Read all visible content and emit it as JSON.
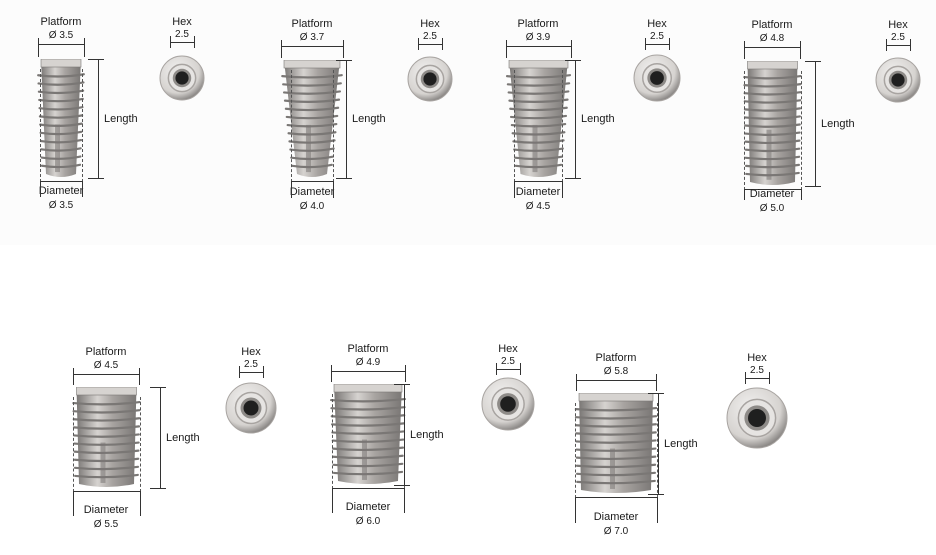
{
  "labels": {
    "platform": "Platform",
    "hex": "Hex",
    "length": "Length",
    "diameter": "Diameter"
  },
  "implants": [
    {
      "platform": "Ø 3.5",
      "hex": "2.5",
      "diameter": "Ø 3.5"
    },
    {
      "platform": "Ø 3.7",
      "hex": "2.5",
      "diameter": "Ø 4.0"
    },
    {
      "platform": "Ø 3.9",
      "hex": "2.5",
      "diameter": "Ø 4.5"
    },
    {
      "platform": "Ø 4.8",
      "hex": "2.5",
      "diameter": "Ø 5.0"
    },
    {
      "platform": "Ø 4.5",
      "hex": "2.5",
      "diameter": "Ø 5.5"
    },
    {
      "platform": "Ø 4.9",
      "hex": "2.5",
      "diameter": "Ø 6.0"
    },
    {
      "platform": "Ø 5.8",
      "hex": "2.5",
      "diameter": "Ø 7.0"
    }
  ],
  "colors": {
    "metal_dark": "#7a7775",
    "metal_mid": "#a8a4a1",
    "metal_light": "#d6d3d0",
    "line": "#333333",
    "background": "#ffffff"
  }
}
